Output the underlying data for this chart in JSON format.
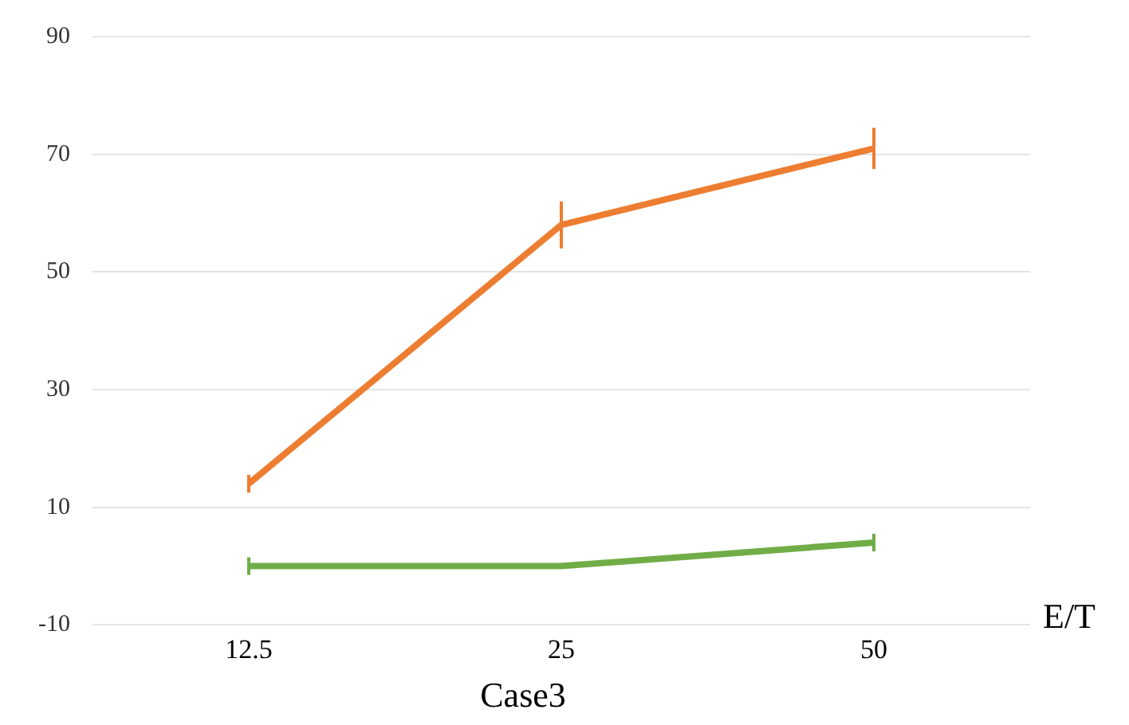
{
  "chart_data": {
    "type": "line",
    "title": "Case3",
    "xlabel": "E/T",
    "categories": [
      "12.5",
      "25",
      "50"
    ],
    "series": [
      {
        "color": "#ed7d31",
        "values": [
          14,
          58,
          71
        ],
        "errors": [
          1.5,
          4,
          3.5
        ]
      },
      {
        "color": "#70ad47",
        "values": [
          0,
          0,
          4
        ],
        "errors": [
          1.5,
          null,
          1.5
        ]
      }
    ],
    "ylim": [
      -10,
      90
    ],
    "yticks": [
      -10,
      10,
      30,
      50,
      70,
      90
    ],
    "grid": "y",
    "legend": false,
    "marker": "none",
    "line_style": "solid"
  }
}
